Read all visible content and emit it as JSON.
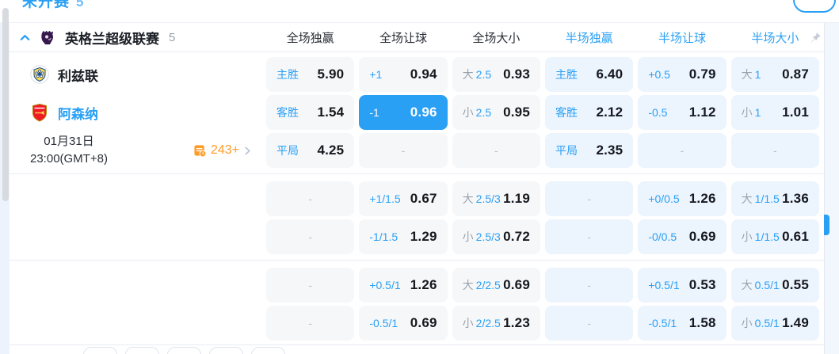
{
  "top_bar": {
    "status_label": "未开赛",
    "status_count": "5"
  },
  "header": {
    "league_name": "英格兰超级联赛",
    "match_count": "5",
    "columns": [
      "全场独赢",
      "全场让球",
      "全场大小",
      "半场独赢",
      "半场让球",
      "半场大小"
    ]
  },
  "match": {
    "home_team": "利兹联",
    "away_team": "阿森纳",
    "date": "01月31日",
    "time": "23:00(GMT+8)",
    "more_markets_count": "243+"
  },
  "odds": {
    "empty_placeholder": "-",
    "groups": [
      {
        "rows": [
          {
            "cells": [
              {
                "label": "主胜",
                "value": "5.90"
              },
              {
                "label": "+1",
                "value": "0.94"
              },
              {
                "prefix": "大",
                "label": "2.5",
                "value": "0.93"
              },
              {
                "label": "主胜",
                "value": "6.40"
              },
              {
                "label": "+0.5",
                "value": "0.79"
              },
              {
                "prefix": "大",
                "label": "1",
                "value": "0.87"
              }
            ]
          },
          {
            "cells": [
              {
                "label": "客胜",
                "value": "1.54"
              },
              {
                "label": "-1",
                "value": "0.96",
                "selected": true
              },
              {
                "prefix": "小",
                "label": "2.5",
                "value": "0.95"
              },
              {
                "label": "客胜",
                "value": "2.12"
              },
              {
                "label": "-0.5",
                "value": "1.12"
              },
              {
                "prefix": "小",
                "label": "1",
                "value": "1.01"
              }
            ]
          },
          {
            "cells": [
              {
                "label": "平局",
                "value": "4.25"
              },
              {
                "empty": true
              },
              {
                "empty": true
              },
              {
                "label": "平局",
                "value": "2.35"
              },
              {
                "empty": true
              },
              {
                "empty": true
              }
            ]
          }
        ]
      },
      {
        "rows": [
          {
            "cells": [
              {
                "empty": true
              },
              {
                "label": "+1/1.5",
                "value": "0.67"
              },
              {
                "prefix": "大",
                "label": "2.5/3",
                "value": "1.19"
              },
              {
                "empty": true
              },
              {
                "label": "+0/0.5",
                "value": "1.26"
              },
              {
                "prefix": "大",
                "label": "1/1.5",
                "value": "1.36"
              }
            ]
          },
          {
            "cells": [
              {
                "empty": true
              },
              {
                "label": "-1/1.5",
                "value": "1.29"
              },
              {
                "prefix": "小",
                "label": "2.5/3",
                "value": "0.72"
              },
              {
                "empty": true
              },
              {
                "label": "-0/0.5",
                "value": "0.69"
              },
              {
                "prefix": "小",
                "label": "1/1.5",
                "value": "0.61"
              }
            ]
          }
        ]
      },
      {
        "rows": [
          {
            "cells": [
              {
                "empty": true
              },
              {
                "label": "+0.5/1",
                "value": "1.26"
              },
              {
                "prefix": "大",
                "label": "2/2.5",
                "value": "0.69"
              },
              {
                "empty": true
              },
              {
                "label": "+0.5/1",
                "value": "0.53"
              },
              {
                "prefix": "大",
                "label": "0.5/1",
                "value": "0.55"
              }
            ]
          },
          {
            "cells": [
              {
                "empty": true
              },
              {
                "label": "-0.5/1",
                "value": "0.69"
              },
              {
                "prefix": "小",
                "label": "2/2.5",
                "value": "1.23"
              },
              {
                "empty": true
              },
              {
                "label": "-0.5/1",
                "value": "1.58"
              },
              {
                "prefix": "小",
                "label": "0.5/1",
                "value": "1.49"
              }
            ]
          }
        ]
      }
    ]
  },
  "colors": {
    "accent_blue": "#2aa0f5",
    "selected_cell_bg": "#2aa0f5",
    "markets_orange": "#ff9b28",
    "ft_cell_bg": "#f6f7f9",
    "ht_cell_bg": "#ecf4fe"
  }
}
